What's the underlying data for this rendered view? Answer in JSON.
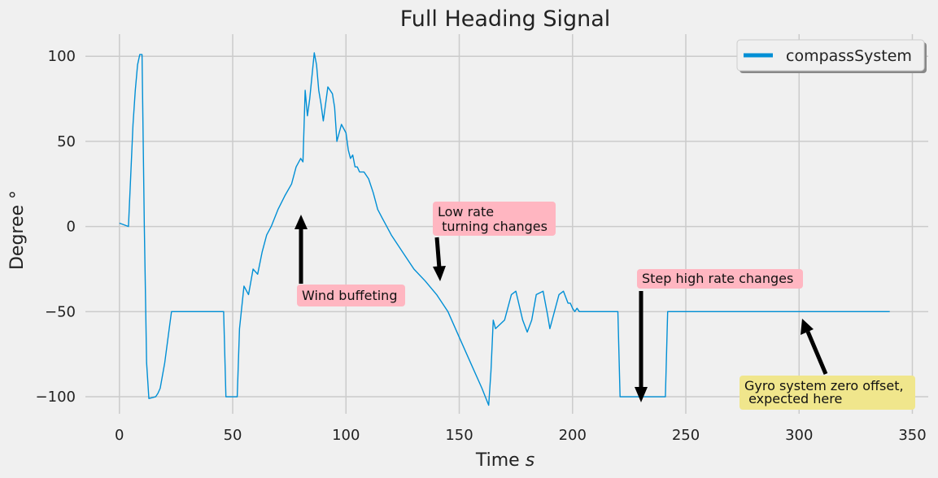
{
  "colors": {
    "background": "#f0f0f0",
    "grid": "#cbcbcb",
    "series": "#008fd5",
    "pink_box": "#ffb6c1",
    "yellow_box": "#f0e68c",
    "arrow": "#000000"
  },
  "chart_data": {
    "type": "line",
    "title": "Full Heading Signal",
    "xlabel": "Time",
    "xlabel_unit": "s",
    "ylabel": "Degree °",
    "xlim": [
      -15,
      357
    ],
    "ylim": [
      -110,
      113
    ],
    "xticks": [
      0,
      50,
      100,
      150,
      200,
      250,
      300,
      350
    ],
    "yticks": [
      -100,
      -50,
      0,
      50,
      100
    ],
    "ytick_labels": [
      "−100",
      "−50",
      "0",
      "50",
      "100"
    ],
    "grid": true,
    "legend_position": "top-right",
    "series": [
      {
        "name": "compassSystem",
        "x": [
          0,
          2,
          4,
          5,
          6,
          7,
          8,
          9,
          10,
          11,
          12,
          13,
          16,
          17,
          18,
          20,
          22,
          23,
          46,
          47,
          52,
          53,
          55,
          57,
          59,
          61,
          63,
          65,
          67,
          70,
          73,
          76,
          78,
          80,
          81,
          82,
          83,
          84,
          86,
          87,
          88,
          89,
          90,
          91,
          92,
          94,
          95,
          96,
          98,
          100,
          101,
          102,
          103,
          104,
          105,
          106,
          108,
          110,
          112,
          113,
          114,
          116,
          118,
          120,
          125,
          130,
          135,
          140,
          145,
          150,
          155,
          160,
          163,
          164,
          165,
          166,
          170,
          173,
          175,
          178,
          180,
          182,
          184,
          187,
          189,
          190,
          192,
          194,
          196,
          198,
          199,
          200,
          201,
          202,
          203,
          210,
          220,
          221,
          222,
          241,
          242,
          243,
          250,
          270,
          300,
          330,
          340
        ],
        "values": [
          2,
          1,
          0,
          30,
          60,
          80,
          95,
          101,
          101,
          0,
          -80,
          -101,
          -100,
          -98,
          -95,
          -80,
          -60,
          -50,
          -50,
          -100,
          -100,
          -60,
          -35,
          -40,
          -25,
          -28,
          -15,
          -5,
          0,
          10,
          18,
          25,
          35,
          40,
          38,
          80,
          65,
          75,
          102,
          95,
          80,
          72,
          62,
          72,
          82,
          78,
          70,
          50,
          60,
          55,
          45,
          40,
          42,
          35,
          35,
          32,
          32,
          28,
          20,
          15,
          10,
          5,
          0,
          -5,
          -15,
          -25,
          -32,
          -40,
          -50,
          -65,
          -80,
          -95,
          -105,
          -85,
          -55,
          -60,
          -55,
          -40,
          -38,
          -55,
          -62,
          -55,
          -40,
          -38,
          -52,
          -60,
          -50,
          -40,
          -38,
          -45,
          -45,
          -48,
          -50,
          -48,
          -50,
          -50,
          -50,
          -100,
          -100,
          -100,
          -50,
          -50,
          -50,
          -50,
          -50,
          -50,
          -50
        ]
      }
    ],
    "annotations": [
      {
        "text": "Wind buffeting",
        "style": "pink"
      },
      {
        "text": "Low rate\n turning changes",
        "style": "pink"
      },
      {
        "text": "Step high rate changes",
        "style": "pink"
      },
      {
        "text": "Gyro system zero offset,\n expected here",
        "style": "yellow"
      }
    ]
  }
}
